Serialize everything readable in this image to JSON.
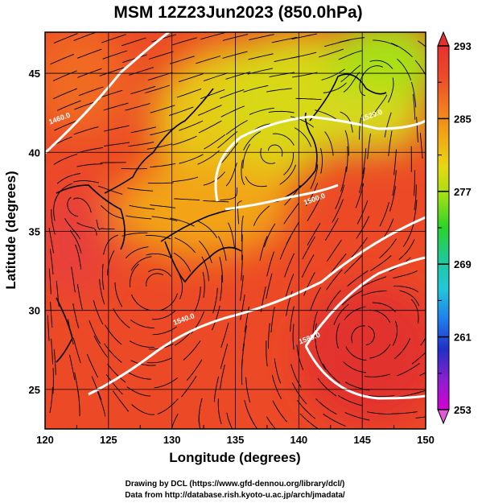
{
  "chart_data": {
    "type": "heatmap",
    "title": "MSM 12Z23Jun2023 (850.0hPa)",
    "xlabel": "Longitude (degrees)",
    "ylabel": "Latitude  (degrees)",
    "xlim": [
      120,
      150
    ],
    "ylim": [
      22.5,
      47.6
    ],
    "xticks": [
      "120",
      "125",
      "130",
      "135",
      "140",
      "145",
      "150"
    ],
    "yticks": [
      "25",
      "30",
      "35",
      "40",
      "45"
    ],
    "colorbar": {
      "range": [
        253,
        293
      ],
      "ticks": [
        "293",
        "285",
        "277",
        "269",
        "261",
        "253"
      ],
      "colors": [
        "#d400d4",
        "#8a1fd0",
        "#2030c8",
        "#1f7ff0",
        "#22c8d8",
        "#20c896",
        "#2ad42a",
        "#9ae014",
        "#e8d810",
        "#f2a814",
        "#f27820",
        "#ee4a28",
        "#e63030"
      ]
    },
    "height_contours": [
      {
        "label": "1460.0",
        "lon": 121.2,
        "lat": 42.0
      },
      {
        "label": "1500.0",
        "lon": 141.3,
        "lat": 36.9
      },
      {
        "label": "1520.0",
        "lon": 145.8,
        "lat": 42.2
      },
      {
        "label": "1540.0",
        "lon": 131.0,
        "lat": 29.3
      },
      {
        "label": "1580.0",
        "lon": 140.9,
        "lat": 28.1
      }
    ],
    "grid": true
  },
  "credits": {
    "line1": "Drawing by DCL (https://www.gfd-dennou.org/library/dcl/)",
    "line2": "Data from http://database.rish.kyoto-u.ac.jp/arch/jmadata/"
  }
}
